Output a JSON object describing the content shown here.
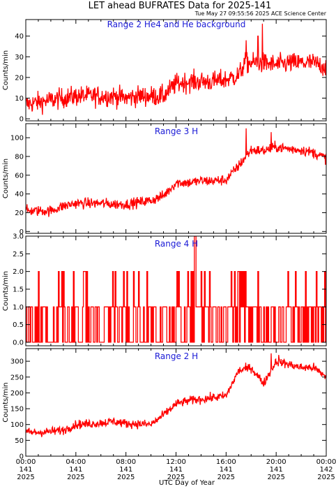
{
  "header": {
    "title": "LET ahead BUFRATES Data for 2025-141",
    "timestamp": "Tue May 27 09:55:56 2025 ACE Science Center"
  },
  "chart_data": [
    {
      "type": "line",
      "title": "Range 2 He4 and He background",
      "ylabel": "Counts/min",
      "ylim": [
        -1,
        48
      ],
      "yticks": [
        0,
        10,
        20,
        30,
        40
      ],
      "color": "#ff0000",
      "noise": 3.5,
      "profile": [
        [
          0,
          7
        ],
        [
          1,
          8
        ],
        [
          2,
          9
        ],
        [
          3,
          10
        ],
        [
          4,
          11
        ],
        [
          5,
          11
        ],
        [
          6,
          11
        ],
        [
          7,
          11
        ],
        [
          8,
          10
        ],
        [
          9,
          11
        ],
        [
          10,
          11
        ],
        [
          11,
          11
        ],
        [
          12,
          17
        ],
        [
          13,
          18
        ],
        [
          14,
          18
        ],
        [
          15,
          18
        ],
        [
          16,
          19
        ],
        [
          17,
          21
        ],
        [
          17.5,
          27
        ],
        [
          18,
          27
        ],
        [
          19,
          27
        ],
        [
          20,
          26
        ],
        [
          21,
          27
        ],
        [
          22,
          27
        ],
        [
          23,
          27
        ],
        [
          24,
          25
        ]
      ],
      "spikes": [
        [
          18.9,
          46
        ],
        [
          18.55,
          40
        ],
        [
          17.6,
          38
        ]
      ]
    },
    {
      "type": "line",
      "title": "Range 3 H",
      "ylabel": "Counts/min",
      "ylim": [
        -2,
        115
      ],
      "yticks": [
        0,
        20,
        40,
        60,
        80,
        100
      ],
      "color": "#ff0000",
      "noise": 4,
      "profile": [
        [
          0,
          22
        ],
        [
          1,
          22
        ],
        [
          2,
          22
        ],
        [
          3,
          27
        ],
        [
          4,
          30
        ],
        [
          5,
          30
        ],
        [
          6,
          30
        ],
        [
          7,
          29
        ],
        [
          8,
          29
        ],
        [
          9,
          31
        ],
        [
          10,
          33
        ],
        [
          11,
          38
        ],
        [
          12,
          52
        ],
        [
          13,
          52
        ],
        [
          14,
          54
        ],
        [
          15,
          54
        ],
        [
          16,
          55
        ],
        [
          17,
          70
        ],
        [
          18,
          87
        ],
        [
          19,
          86
        ],
        [
          20,
          90
        ],
        [
          21,
          88
        ],
        [
          22,
          87
        ],
        [
          23,
          84
        ],
        [
          24,
          78
        ]
      ],
      "spikes": [
        [
          17.6,
          110
        ],
        [
          19.6,
          106
        ]
      ]
    },
    {
      "type": "line",
      "title": "Range 4 H",
      "ylabel": "Counts/min",
      "ylim": [
        -0.1,
        3.0
      ],
      "yticks": [
        0.0,
        0.5,
        1.0,
        1.5,
        2.0,
        2.5,
        3.0
      ],
      "color": "#ff0000",
      "step": true
    },
    {
      "type": "line",
      "title": "Range 2 H",
      "ylabel": "Counts/min",
      "ylim": [
        0,
        340
      ],
      "yticks": [
        0,
        50,
        100,
        150,
        200,
        250,
        300
      ],
      "color": "#ff0000",
      "noise": 10,
      "profile": [
        [
          0,
          75
        ],
        [
          1,
          75
        ],
        [
          2,
          78
        ],
        [
          3,
          82
        ],
        [
          4,
          100
        ],
        [
          5,
          102
        ],
        [
          6,
          105
        ],
        [
          7,
          110
        ],
        [
          8,
          103
        ],
        [
          9,
          102
        ],
        [
          10,
          100
        ],
        [
          11,
          130
        ],
        [
          12,
          165
        ],
        [
          13,
          175
        ],
        [
          14,
          180
        ],
        [
          15,
          185
        ],
        [
          16,
          190
        ],
        [
          17,
          270
        ],
        [
          18,
          280
        ],
        [
          19,
          230
        ],
        [
          20,
          300
        ],
        [
          21,
          290
        ],
        [
          22,
          280
        ],
        [
          23,
          280
        ],
        [
          24,
          250
        ]
      ],
      "spikes": [
        [
          19.6,
          325
        ],
        [
          20.2,
          320
        ]
      ]
    }
  ],
  "x_axis": {
    "xlabel": "UTC Day of Year",
    "xlim": [
      0,
      24
    ],
    "ticks": [
      {
        "hour": 0,
        "time": "00:00",
        "day": "141",
        "year": "2025"
      },
      {
        "hour": 4,
        "time": "04:00",
        "day": "141",
        "year": "2025"
      },
      {
        "hour": 8,
        "time": "08:00",
        "day": "141",
        "year": "2025"
      },
      {
        "hour": 12,
        "time": "12:00",
        "day": "141",
        "year": "2025"
      },
      {
        "hour": 16,
        "time": "16:00",
        "day": "141",
        "year": "2025"
      },
      {
        "hour": 20,
        "time": "20:00",
        "day": "141",
        "year": "2025"
      },
      {
        "hour": 24,
        "time": "00:00",
        "day": "142",
        "year": "2025"
      }
    ]
  }
}
